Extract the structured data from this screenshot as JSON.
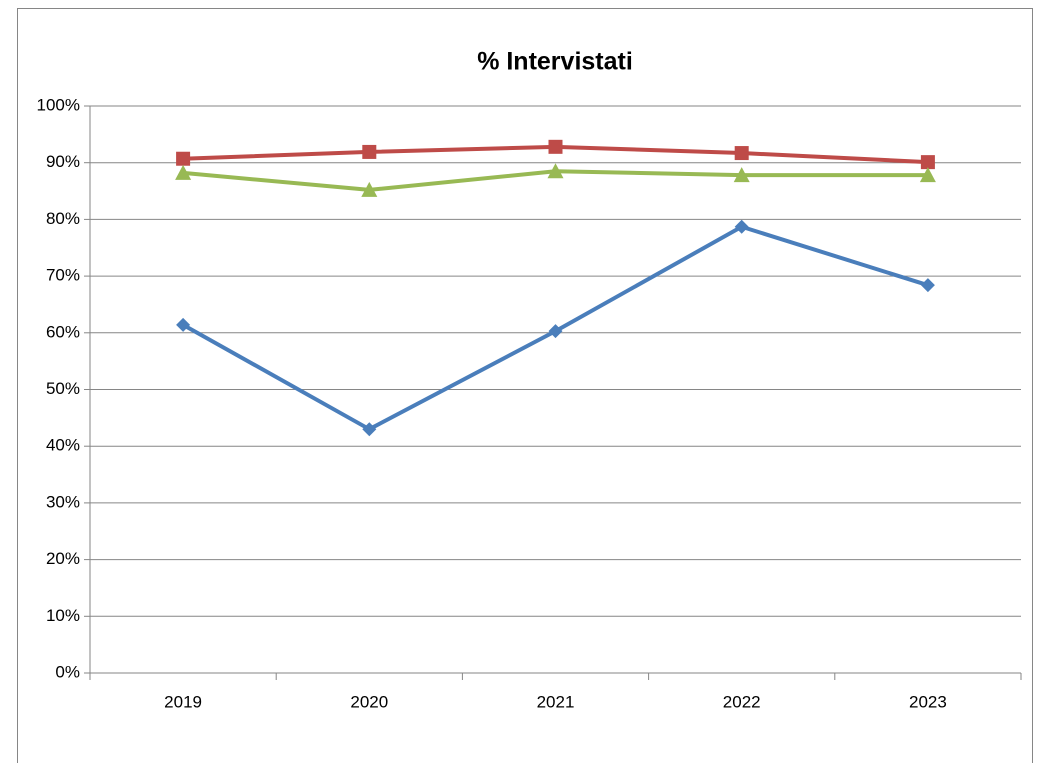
{
  "chart_data": {
    "type": "line",
    "title": "% Intervistati",
    "categories": [
      "2019",
      "2020",
      "2021",
      "2022",
      "2023"
    ],
    "series": [
      {
        "color": "#4a7ebb",
        "marker": "diamond",
        "values": [
          61.4,
          43.0,
          60.3,
          78.7,
          68.4
        ]
      },
      {
        "color": "#be4b48",
        "marker": "square",
        "values": [
          90.7,
          91.9,
          92.8,
          91.7,
          90.1
        ]
      },
      {
        "color": "#98b954",
        "marker": "triangle",
        "values": [
          88.2,
          85.2,
          88.5,
          87.8,
          87.8
        ]
      }
    ],
    "ylim": [
      0,
      100
    ],
    "yticks": [
      {
        "value": 0,
        "label": "0%"
      },
      {
        "value": 10,
        "label": "10%"
      },
      {
        "value": 20,
        "label": "20%"
      },
      {
        "value": 30,
        "label": "30%"
      },
      {
        "value": 40,
        "label": "40%"
      },
      {
        "value": 50,
        "label": "50%"
      },
      {
        "value": 60,
        "label": "60%"
      },
      {
        "value": 70,
        "label": "70%"
      },
      {
        "value": 80,
        "label": "80%"
      },
      {
        "value": 90,
        "label": "90%"
      },
      {
        "value": 100,
        "label": "100%"
      }
    ],
    "grid": true
  }
}
